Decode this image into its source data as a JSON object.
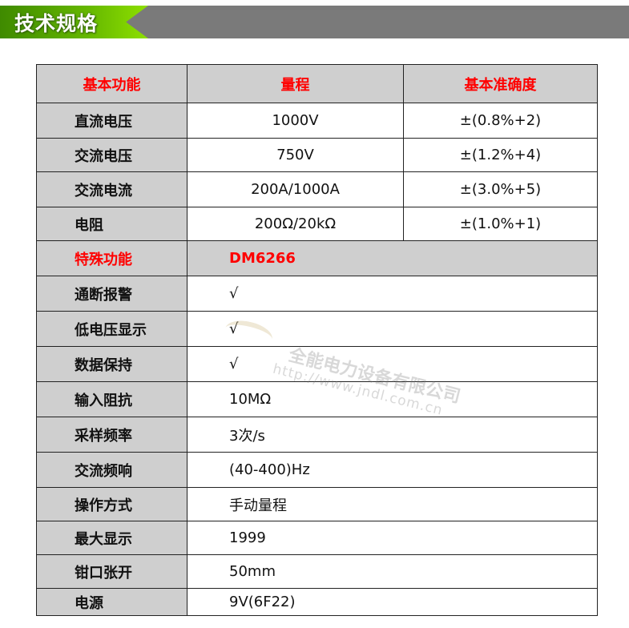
{
  "banner": {
    "title": "技术规格",
    "accent_color": "#66b800",
    "bar_color": "#7a7a7a"
  },
  "table": {
    "header": [
      "基本功能",
      "量程",
      "基本准确度"
    ],
    "basic_rows": [
      [
        "直流电压",
        "1000V",
        "±(0.8%+2)"
      ],
      [
        "交流电压",
        "750V",
        "±(1.2%+4)"
      ],
      [
        "交流电流",
        "200A/1000A",
        "±(3.0%+5)"
      ],
      [
        "电阻",
        "200Ω/20kΩ",
        "±(1.0%+1)"
      ]
    ],
    "special_header": [
      "特殊功能",
      "DM6266"
    ],
    "special_rows": [
      [
        "通断报警",
        "√"
      ],
      [
        "低电压显示",
        "√"
      ],
      [
        "数据保持",
        "√"
      ],
      [
        "输入阻抗",
        "10MΩ"
      ],
      [
        "采样频率",
        "3次/s"
      ],
      [
        "交流频响",
        "(40-400)Hz"
      ],
      [
        "操作方式",
        "手动量程"
      ],
      [
        "最大显示",
        "1999"
      ],
      [
        "钳口张开",
        "50mm"
      ],
      [
        "电源",
        "9V(6F22)"
      ]
    ],
    "header_text_color": "#ff0000"
  },
  "watermark": {
    "name": "全能电力设备有限公司",
    "url": "http://www.jndl.com.cn",
    "logo_text": "全能电力"
  }
}
